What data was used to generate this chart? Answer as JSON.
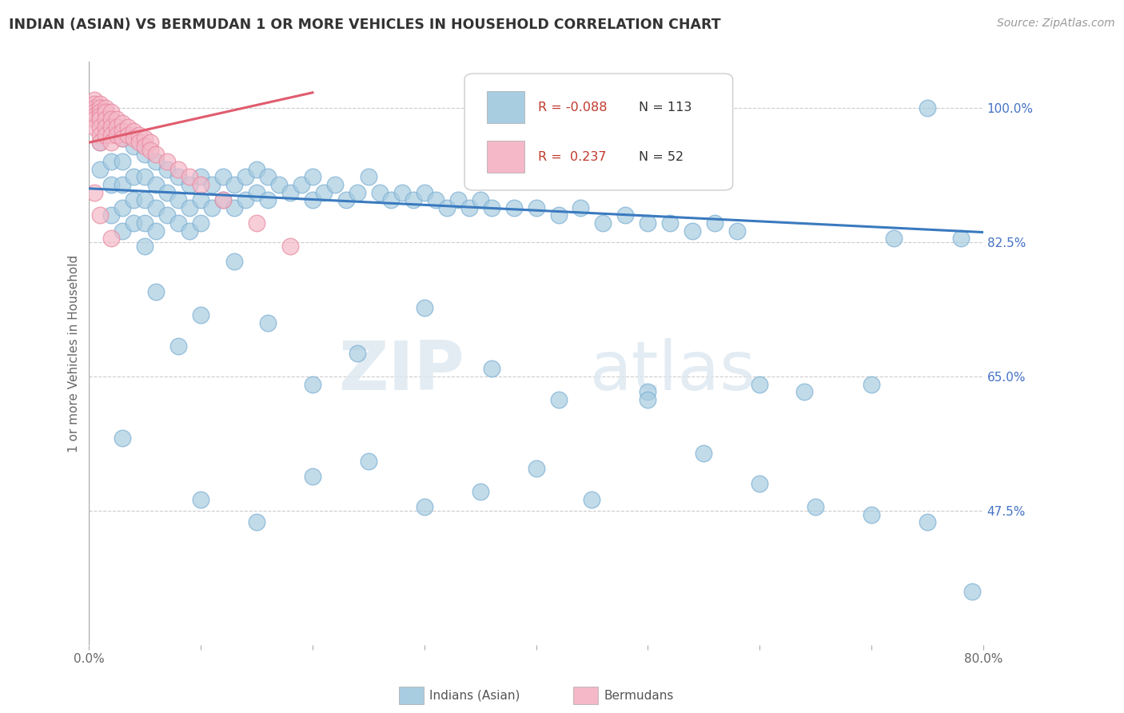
{
  "title": "INDIAN (ASIAN) VS BERMUDAN 1 OR MORE VEHICLES IN HOUSEHOLD CORRELATION CHART",
  "source": "Source: ZipAtlas.com",
  "ylabel": "1 or more Vehicles in Household",
  "xlim": [
    0.0,
    0.8
  ],
  "ylim": [
    0.3,
    1.06
  ],
  "x_ticks": [
    0.0,
    0.1,
    0.2,
    0.3,
    0.4,
    0.5,
    0.6,
    0.7,
    0.8
  ],
  "x_tick_labels": [
    "0.0%",
    "",
    "",
    "",
    "",
    "",
    "",
    "",
    "80.0%"
  ],
  "y_tick_labels_right": [
    "100.0%",
    "82.5%",
    "65.0%",
    "47.5%"
  ],
  "y_ticks_right": [
    1.0,
    0.825,
    0.65,
    0.475
  ],
  "legend_R_blue": "-0.088",
  "legend_N_blue": "113",
  "legend_R_pink": "0.237",
  "legend_N_pink": "52",
  "blue_color": "#a8cce0",
  "blue_edge_color": "#7bafd4",
  "pink_color": "#f4b8c8",
  "pink_edge_color": "#e88aa0",
  "trendline_blue_color": "#3a7abf",
  "trendline_pink_color": "#e05c6e",
  "watermark_zip": "ZIP",
  "watermark_atlas": "atlas",
  "blue_scatter_x": [
    0.01,
    0.01,
    0.02,
    0.02,
    0.02,
    0.02,
    0.03,
    0.03,
    0.03,
    0.03,
    0.03,
    0.04,
    0.04,
    0.04,
    0.04,
    0.05,
    0.05,
    0.05,
    0.05,
    0.05,
    0.06,
    0.06,
    0.06,
    0.06,
    0.07,
    0.07,
    0.07,
    0.08,
    0.08,
    0.08,
    0.09,
    0.09,
    0.09,
    0.1,
    0.1,
    0.1,
    0.11,
    0.11,
    0.12,
    0.12,
    0.13,
    0.13,
    0.14,
    0.14,
    0.15,
    0.15,
    0.16,
    0.16,
    0.17,
    0.18,
    0.19,
    0.2,
    0.2,
    0.21,
    0.22,
    0.23,
    0.24,
    0.25,
    0.26,
    0.27,
    0.28,
    0.29,
    0.3,
    0.31,
    0.32,
    0.33,
    0.34,
    0.35,
    0.36,
    0.38,
    0.4,
    0.42,
    0.44,
    0.46,
    0.48,
    0.5,
    0.52,
    0.54,
    0.56,
    0.58,
    0.03,
    0.06,
    0.08,
    0.1,
    0.13,
    0.16,
    0.2,
    0.24,
    0.3,
    0.36,
    0.42,
    0.5,
    0.6,
    0.64,
    0.7,
    0.72,
    0.75,
    0.1,
    0.15,
    0.2,
    0.25,
    0.3,
    0.35,
    0.4,
    0.45,
    0.5,
    0.55,
    0.6,
    0.65,
    0.7,
    0.75,
    0.78,
    0.79
  ],
  "blue_scatter_y": [
    0.955,
    0.92,
    0.97,
    0.93,
    0.9,
    0.86,
    0.96,
    0.93,
    0.9,
    0.87,
    0.84,
    0.95,
    0.91,
    0.88,
    0.85,
    0.94,
    0.91,
    0.88,
    0.85,
    0.82,
    0.93,
    0.9,
    0.87,
    0.84,
    0.92,
    0.89,
    0.86,
    0.91,
    0.88,
    0.85,
    0.9,
    0.87,
    0.84,
    0.91,
    0.88,
    0.85,
    0.9,
    0.87,
    0.91,
    0.88,
    0.9,
    0.87,
    0.91,
    0.88,
    0.92,
    0.89,
    0.91,
    0.88,
    0.9,
    0.89,
    0.9,
    0.91,
    0.88,
    0.89,
    0.9,
    0.88,
    0.89,
    0.91,
    0.89,
    0.88,
    0.89,
    0.88,
    0.89,
    0.88,
    0.87,
    0.88,
    0.87,
    0.88,
    0.87,
    0.87,
    0.87,
    0.86,
    0.87,
    0.85,
    0.86,
    0.85,
    0.85,
    0.84,
    0.85,
    0.84,
    0.57,
    0.76,
    0.69,
    0.73,
    0.8,
    0.72,
    0.64,
    0.68,
    0.74,
    0.66,
    0.62,
    0.63,
    0.64,
    0.63,
    0.64,
    0.83,
    1.0,
    0.49,
    0.46,
    0.52,
    0.54,
    0.48,
    0.5,
    0.53,
    0.49,
    0.62,
    0.55,
    0.51,
    0.48,
    0.47,
    0.46,
    0.83,
    0.37
  ],
  "pink_scatter_x": [
    0.005,
    0.005,
    0.005,
    0.005,
    0.005,
    0.005,
    0.005,
    0.01,
    0.01,
    0.01,
    0.01,
    0.01,
    0.01,
    0.01,
    0.01,
    0.015,
    0.015,
    0.015,
    0.015,
    0.015,
    0.02,
    0.02,
    0.02,
    0.02,
    0.02,
    0.025,
    0.025,
    0.025,
    0.03,
    0.03,
    0.03,
    0.035,
    0.035,
    0.04,
    0.04,
    0.045,
    0.045,
    0.05,
    0.05,
    0.055,
    0.055,
    0.06,
    0.07,
    0.08,
    0.09,
    0.1,
    0.12,
    0.15,
    0.18,
    0.005,
    0.01,
    0.02
  ],
  "pink_scatter_y": [
    1.01,
    1.005,
    1.0,
    0.995,
    0.99,
    0.985,
    0.975,
    1.005,
    1.0,
    0.995,
    0.99,
    0.985,
    0.975,
    0.965,
    0.955,
    1.0,
    0.995,
    0.985,
    0.975,
    0.965,
    0.995,
    0.985,
    0.975,
    0.965,
    0.955,
    0.985,
    0.975,
    0.965,
    0.98,
    0.97,
    0.96,
    0.975,
    0.965,
    0.97,
    0.96,
    0.965,
    0.955,
    0.96,
    0.95,
    0.955,
    0.945,
    0.94,
    0.93,
    0.92,
    0.91,
    0.9,
    0.88,
    0.85,
    0.82,
    0.89,
    0.86,
    0.83
  ]
}
